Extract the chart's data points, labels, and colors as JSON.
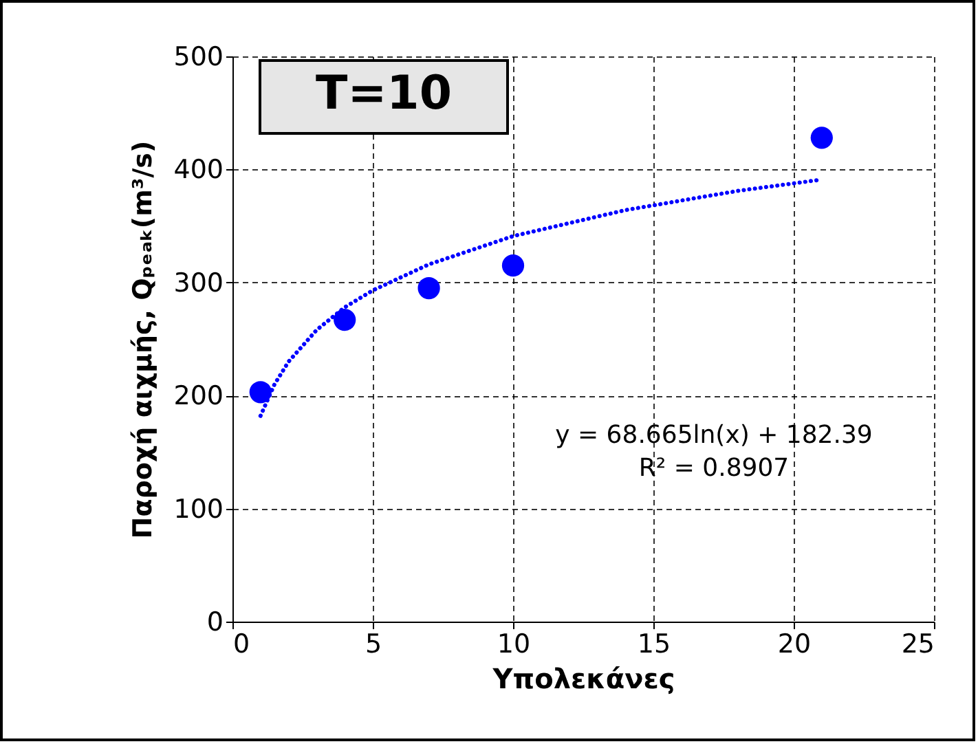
{
  "chart_data": {
    "type": "scatter",
    "xlabel": "Υπολεκάνες",
    "ylabel": "Παροχή αιχμής, Qₚₑₐₖ(m³/s)",
    "annotations": [
      "T=10",
      "y = 68.665ln(x) + 182.39",
      "R² = 0.8907"
    ],
    "x": [
      1,
      4,
      7,
      10,
      21
    ],
    "series": [
      {
        "color": "#0000ff",
        "values": [
          203,
          267,
          295,
          315,
          428
        ],
        "marker": "circle"
      },
      {
        "type": "line",
        "color": "#0000ff",
        "line_style": "dotted",
        "marker": "none",
        "x": [
          1,
          1.5,
          2,
          3,
          4,
          5,
          7,
          10,
          14,
          18,
          21
        ],
        "values": [
          182,
          210,
          230,
          258,
          278,
          293,
          316,
          341,
          364,
          381,
          391
        ]
      }
    ],
    "xlim": [
      0,
      25
    ],
    "xticks": [
      0,
      5,
      10,
      15,
      20,
      25
    ],
    "ylim": [
      0,
      500
    ],
    "yticks": [
      0,
      100,
      200,
      300,
      400,
      500
    ],
    "grid": true
  }
}
